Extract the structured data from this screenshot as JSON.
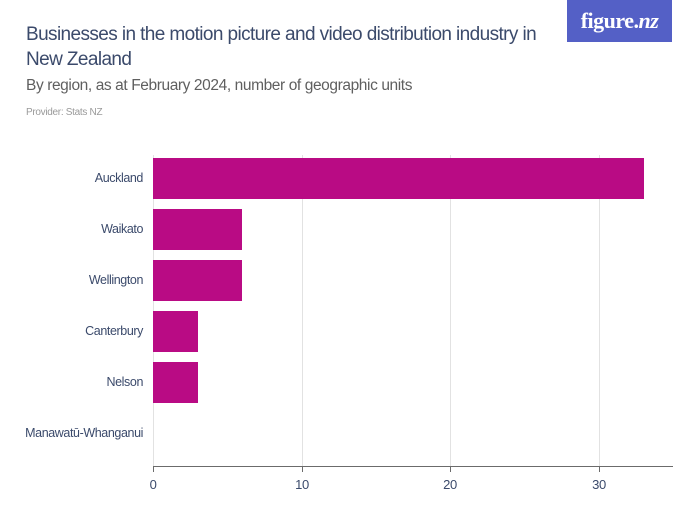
{
  "header": {
    "title": "Businesses in the motion picture and video distribution industry in New Zealand",
    "subtitle": "By region, as at February 2024, number of geographic units",
    "provider": "Provider: Stats NZ"
  },
  "logo": {
    "text_main": "figure.",
    "text_accent": "nz",
    "background": "#5460c6"
  },
  "colors": {
    "bar": "#b90b84",
    "title": "#3b4a6b",
    "gridline": "#e2e2e2",
    "axis": "#6b6b6b"
  },
  "chart_data": {
    "type": "bar",
    "orientation": "horizontal",
    "title": "Businesses in the motion picture and video distribution industry in New Zealand",
    "subtitle": "By region, as at February 2024, number of geographic units",
    "source": "Provider: Stats NZ",
    "categories": [
      "Auckland",
      "Waikato",
      "Wellington",
      "Canterbury",
      "Nelson",
      "Manawatū-Whanganui"
    ],
    "values": [
      33,
      6,
      6,
      3,
      3,
      0
    ],
    "xlabel": "",
    "ylabel": "",
    "xlim": [
      0,
      35
    ],
    "xticks": [
      0,
      10,
      20,
      30
    ],
    "grid": true,
    "legend": null
  }
}
